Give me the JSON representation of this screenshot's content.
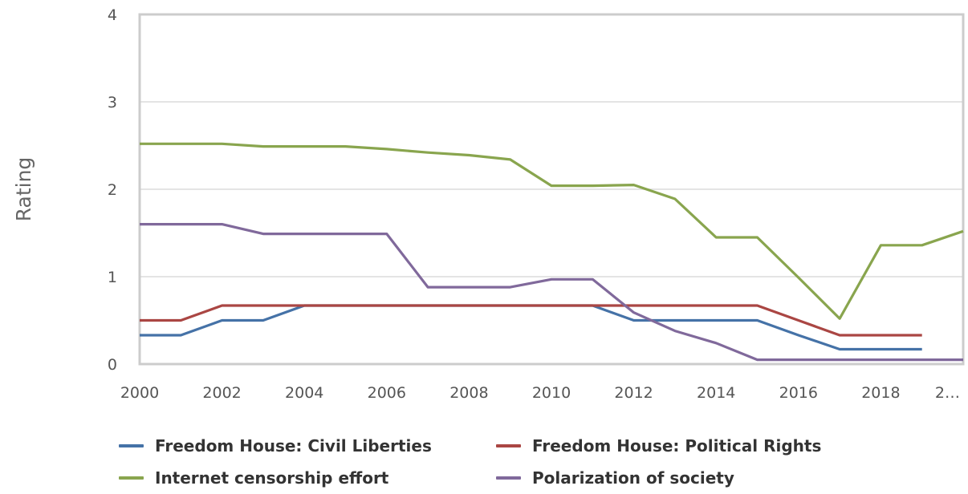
{
  "chart_data": {
    "type": "line",
    "title": "",
    "xlabel": "",
    "ylabel": "Rating",
    "ylim": [
      0,
      4
    ],
    "xlim": [
      2000,
      2020
    ],
    "yticks": [
      "0",
      "1",
      "2",
      "3",
      "4"
    ],
    "xticks": [
      "2000",
      "2002",
      "2004",
      "2006",
      "2008",
      "2010",
      "2012",
      "2014",
      "2016",
      "2018",
      "2…"
    ],
    "grid": true,
    "legend_position": "bottom",
    "x": [
      2000,
      2001,
      2002,
      2003,
      2004,
      2005,
      2006,
      2007,
      2008,
      2009,
      2010,
      2011,
      2012,
      2013,
      2014,
      2015,
      2016,
      2017,
      2018,
      2019,
      2020
    ],
    "series": [
      {
        "name": "Freedom House: Civil Liberties",
        "color": "#4572a7",
        "values": [
          0.33,
          0.33,
          0.5,
          0.5,
          0.67,
          0.67,
          0.67,
          0.67,
          0.67,
          0.67,
          0.67,
          0.67,
          0.5,
          0.5,
          0.5,
          0.5,
          0.33,
          0.17,
          0.17,
          0.17,
          null
        ]
      },
      {
        "name": "Freedom House: Political Rights",
        "color": "#aa4643",
        "values": [
          0.5,
          0.5,
          0.67,
          0.67,
          0.67,
          0.67,
          0.67,
          0.67,
          0.67,
          0.67,
          0.67,
          0.67,
          0.67,
          0.67,
          0.67,
          0.67,
          0.5,
          0.33,
          0.33,
          0.33,
          null
        ]
      },
      {
        "name": "Internet censorship effort",
        "color": "#89a54e",
        "values": [
          2.52,
          2.52,
          2.52,
          2.49,
          2.49,
          2.49,
          2.46,
          2.42,
          2.39,
          2.34,
          2.04,
          2.04,
          2.05,
          1.89,
          1.45,
          1.45,
          0.99,
          0.52,
          1.36,
          1.36,
          1.52
        ]
      },
      {
        "name": "Polarization of society",
        "color": "#80699b",
        "values": [
          1.6,
          1.6,
          1.6,
          1.49,
          1.49,
          1.49,
          1.49,
          0.88,
          0.88,
          0.88,
          0.97,
          0.97,
          0.59,
          0.38,
          0.24,
          0.05,
          0.05,
          0.05,
          0.05,
          0.05,
          0.05
        ]
      }
    ]
  }
}
